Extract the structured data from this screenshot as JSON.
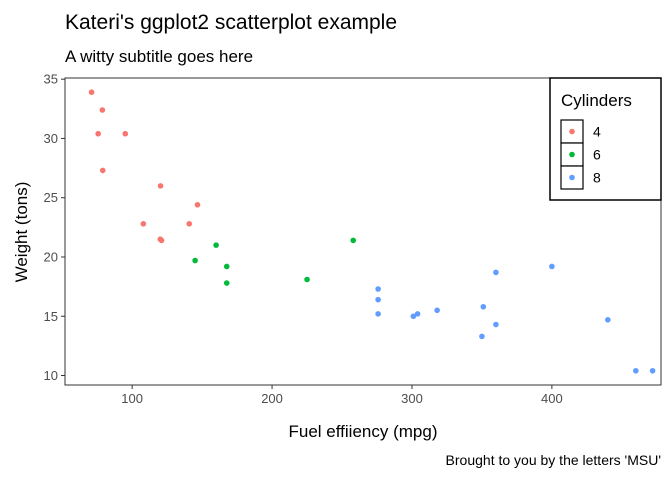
{
  "chart_data": {
    "type": "scatter",
    "title": "Kateri's ggplot2 scatterplot example",
    "subtitle": "A witty subtitle goes here",
    "xlabel": "Fuel effiiency (mpg)",
    "ylabel": "Weight (tons)",
    "caption": "Brought to you by the letters 'MSU'",
    "xlim": [
      52,
      478
    ],
    "ylim": [
      9.2,
      35.1
    ],
    "xticks": [
      100,
      200,
      300,
      400
    ],
    "yticks": [
      10,
      15,
      20,
      25,
      30,
      35
    ],
    "grid": false,
    "legend": {
      "title": "Cylinders",
      "position": "top-right",
      "entries": [
        {
          "label": "4",
          "color": "#F8766D"
        },
        {
          "label": "6",
          "color": "#00BA38"
        },
        {
          "label": "8",
          "color": "#619CFF"
        }
      ]
    },
    "series": [
      {
        "name": "4",
        "color": "#F8766D",
        "points": [
          [
            71,
            33.9
          ],
          [
            75.7,
            30.4
          ],
          [
            78.7,
            32.4
          ],
          [
            79,
            27.3
          ],
          [
            95.1,
            30.4
          ],
          [
            108,
            22.8
          ],
          [
            120.1,
            21.5
          ],
          [
            120.3,
            26.0
          ],
          [
            121,
            21.4
          ],
          [
            140.8,
            22.8
          ],
          [
            146.7,
            24.4
          ]
        ]
      },
      {
        "name": "6",
        "color": "#00BA38",
        "points": [
          [
            145,
            19.7
          ],
          [
            160,
            21.0
          ],
          [
            167.6,
            19.2
          ],
          [
            167.6,
            17.8
          ],
          [
            225,
            18.1
          ],
          [
            258,
            21.4
          ]
        ]
      },
      {
        "name": "8",
        "color": "#619CFF",
        "points": [
          [
            275.8,
            16.4
          ],
          [
            275.8,
            17.3
          ],
          [
            275.8,
            15.2
          ],
          [
            301,
            15.0
          ],
          [
            304,
            15.2
          ],
          [
            318,
            15.5
          ],
          [
            350,
            13.3
          ],
          [
            351,
            15.8
          ],
          [
            360,
            18.7
          ],
          [
            360,
            14.3
          ],
          [
            400,
            19.2
          ],
          [
            440,
            14.7
          ],
          [
            460,
            10.4
          ],
          [
            472,
            10.4
          ]
        ]
      }
    ]
  }
}
